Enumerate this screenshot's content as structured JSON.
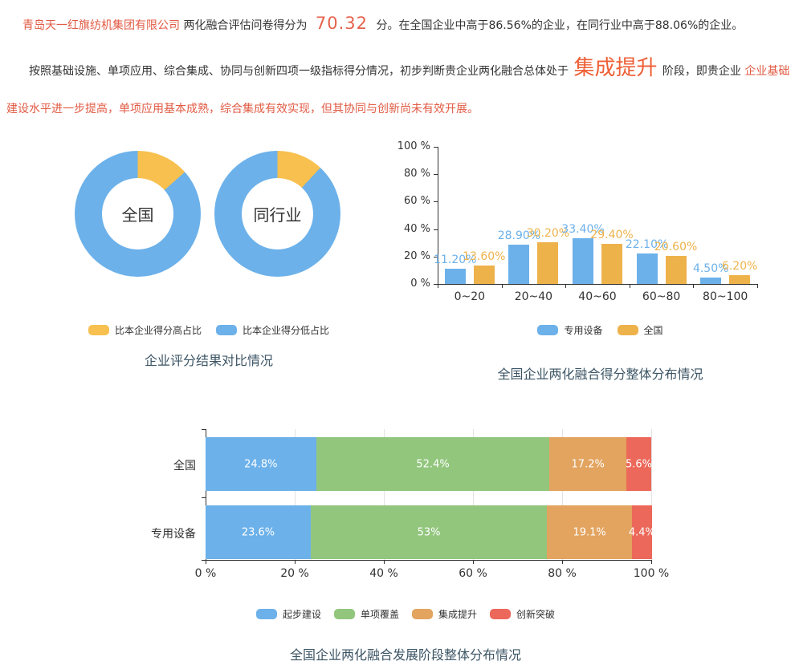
{
  "header": {
    "line1": {
      "company": "青岛天一红旗纺机集团有限公司",
      "prefix": "两化融合评估问卷得分为",
      "score": "70.32",
      "suffix": "分。在全国企业中高于86.56%的企业，在同行业中高于88.06%的企业。"
    },
    "line2": {
      "lead": "按照基础设施、单项应用、综合集成、协同与创新四项一级指标得分情况，初步判断贵企业两化融合总体处于",
      "stage": "集成提升",
      "mid": "阶段，即贵企业",
      "detail": "企业基础建设水平进一步提高，单项应用基本成熟，综合集成有效实现，但其协同与创新尚未有效开展。"
    }
  },
  "colors": {
    "accent_red": "#e15a43",
    "score": "#e4624c",
    "stage": "#ee5f36",
    "title": "#3c5565",
    "axis": "#333333",
    "grid": "#e2e2e2"
  },
  "chart_data": [
    {
      "type": "pie",
      "variant": "donut-pair",
      "title": "企业评分结果对比情况",
      "legend_position": "bottom",
      "donuts": [
        {
          "label": "全国",
          "slices": [
            {
              "name": "比本企业得分高占比",
              "value": 13.44
            },
            {
              "name": "比本企业得分低占比",
              "value": 86.56
            }
          ]
        },
        {
          "label": "同行业",
          "slices": [
            {
              "name": "比本企业得分高占比",
              "value": 11.94
            },
            {
              "name": "比本企业得分低占比",
              "value": 88.06
            }
          ]
        }
      ],
      "legend": [
        {
          "label": "比本企业得分高占比",
          "color": "#f7c04f"
        },
        {
          "label": "比本企业得分低占比",
          "color": "#6cb1ea"
        }
      ]
    },
    {
      "type": "bar",
      "variant": "grouped-vertical",
      "title": "全国企业两化融合得分整体分布情况",
      "categories": [
        "0~20",
        "20~40",
        "40~60",
        "60~80",
        "80~100"
      ],
      "series": [
        {
          "name": "专用设备",
          "color": "#6cb1ea",
          "values": [
            11.2,
            28.9,
            33.4,
            22.1,
            4.5
          ],
          "labels": [
            "11.20%",
            "28.90%",
            "33.40%",
            "22.10%",
            "4.50%"
          ]
        },
        {
          "name": "全国",
          "color": "#eeb24b",
          "values": [
            13.6,
            30.2,
            29.4,
            20.6,
            6.2
          ],
          "labels": [
            "13.60%",
            "30.20%",
            "29.40%",
            "20.60%",
            "6.20%"
          ]
        }
      ],
      "ylim": [
        0,
        100
      ],
      "ylabels": [
        "0 %",
        "20 %",
        "40 %",
        "60 %",
        "80 %",
        "100 %"
      ],
      "grid": false,
      "legend_position": "bottom"
    },
    {
      "type": "bar",
      "variant": "stacked-horizontal",
      "title": "全国企业两化融合发展阶段整体分布情况",
      "categories": [
        "全国",
        "专用设备"
      ],
      "series": [
        {
          "name": "起步建设",
          "color": "#6cb1ea",
          "values": [
            24.8,
            23.6
          ],
          "labels": [
            "24.8%",
            "23.6%"
          ]
        },
        {
          "name": "单项覆盖",
          "color": "#92c67d",
          "values": [
            52.4,
            53
          ],
          "labels": [
            "52.4%",
            "53%"
          ]
        },
        {
          "name": "集成提升",
          "color": "#e2a45f",
          "values": [
            17.2,
            19.1
          ],
          "labels": [
            "17.2%",
            "19.1%"
          ]
        },
        {
          "name": "创新突破",
          "color": "#ec685a",
          "values": [
            5.6,
            4.4
          ],
          "labels": [
            "5.6%",
            "4.4%"
          ]
        }
      ],
      "xlim": [
        0,
        100
      ],
      "xlabels": [
        "0 %",
        "20 %",
        "40 %",
        "60 %",
        "80 %",
        "100 %"
      ],
      "grid": true,
      "legend_position": "bottom"
    }
  ]
}
